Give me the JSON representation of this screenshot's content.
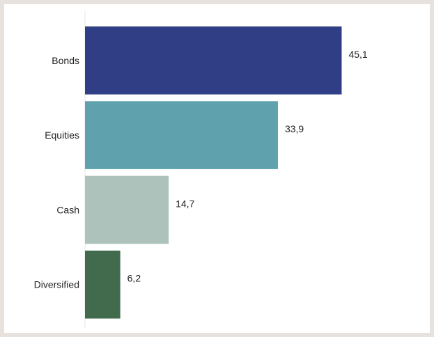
{
  "chart_data": {
    "type": "bar",
    "orientation": "horizontal",
    "title": "",
    "xlabel": "",
    "ylabel": "",
    "categories": [
      "Bonds",
      "Equities",
      "Cash",
      "Diversified"
    ],
    "values": [
      45.1,
      33.9,
      14.7,
      6.2
    ],
    "value_labels": [
      "45,1",
      "33,9",
      "14,7",
      "6,2"
    ],
    "colors": [
      "#2f3e85",
      "#5fa2ad",
      "#adc2bb",
      "#426b4d"
    ],
    "xlim": [
      0,
      50
    ],
    "grid": false,
    "legend": "none"
  }
}
